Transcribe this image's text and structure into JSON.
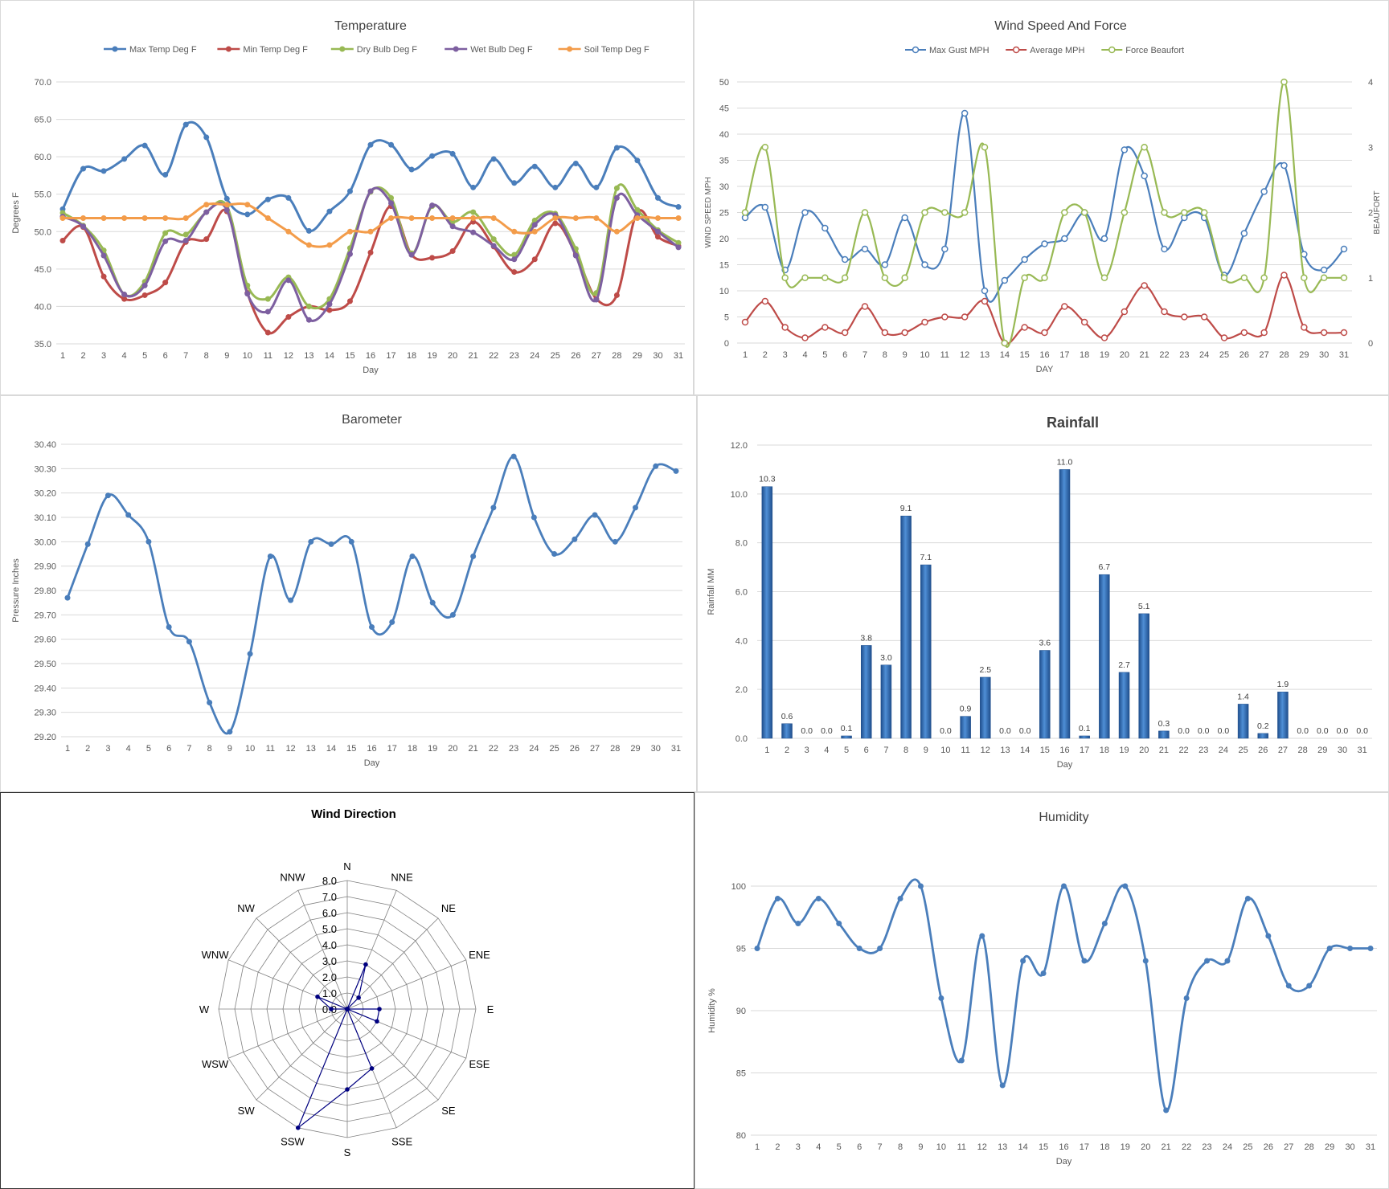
{
  "days": [
    1,
    2,
    3,
    4,
    5,
    6,
    7,
    8,
    9,
    10,
    11,
    12,
    13,
    14,
    15,
    16,
    17,
    18,
    19,
    20,
    21,
    22,
    23,
    24,
    25,
    26,
    27,
    28,
    29,
    30,
    31
  ],
  "chart_data": [
    {
      "id": "temperature",
      "type": "line",
      "title": "Temperature",
      "xlabel": "Day",
      "ylabel": "Degrees F",
      "ylim": [
        35,
        70
      ],
      "yticks": [
        "35.0",
        "40.0",
        "45.0",
        "50.0",
        "55.0",
        "60.0",
        "65.0",
        "70.0"
      ],
      "legend_position": "top",
      "grid": true,
      "series": [
        {
          "name": "Max Temp Deg F",
          "color": "#4a7ebb",
          "values": [
            53.0,
            58.4,
            58.1,
            59.7,
            61.5,
            57.6,
            64.3,
            62.6,
            54.4,
            52.3,
            54.3,
            54.5,
            50.1,
            52.7,
            55.4,
            61.6,
            61.6,
            58.3,
            60.1,
            60.4,
            55.9,
            59.7,
            56.5,
            58.7,
            55.9,
            59.1,
            55.9,
            61.2,
            59.5,
            54.5,
            53.3
          ]
        },
        {
          "name": "Min Temp Deg F",
          "color": "#be4b48",
          "values": [
            48.8,
            50.6,
            44.0,
            41.0,
            41.5,
            43.2,
            48.6,
            49.0,
            52.7,
            41.8,
            36.5,
            38.6,
            40.0,
            39.5,
            40.7,
            47.2,
            53.4,
            46.9,
            46.5,
            47.4,
            51.3,
            48.0,
            44.6,
            46.3,
            51.1,
            47.0,
            41.0,
            41.5,
            52.6,
            49.3,
            48.1
          ]
        },
        {
          "name": "Dry Bulb Deg F",
          "color": "#98b954",
          "values": [
            52.5,
            50.8,
            47.5,
            41.6,
            43.3,
            49.8,
            49.6,
            52.6,
            53.4,
            42.8,
            41.0,
            43.9,
            40.0,
            41.0,
            47.8,
            55.3,
            54.5,
            47.1,
            53.4,
            51.3,
            52.6,
            49.0,
            46.9,
            51.5,
            52.4,
            47.7,
            41.8,
            55.8,
            52.9,
            50.2,
            48.5
          ]
        },
        {
          "name": "Wet Bulb Deg F",
          "color": "#7d5fa0",
          "values": [
            52.0,
            50.7,
            46.8,
            41.6,
            42.8,
            48.7,
            48.8,
            52.6,
            52.9,
            41.7,
            39.3,
            43.5,
            38.2,
            40.3,
            47.0,
            55.4,
            53.8,
            46.9,
            53.5,
            50.7,
            49.9,
            48.1,
            46.3,
            50.9,
            52.2,
            46.8,
            40.9,
            54.5,
            52.2,
            50.0,
            47.9
          ]
        },
        {
          "name": "Soil Temp Deg F",
          "color": "#f39c4a",
          "values": [
            51.8,
            51.8,
            51.8,
            51.8,
            51.8,
            51.8,
            51.8,
            53.6,
            53.6,
            53.6,
            51.8,
            50.0,
            48.2,
            48.2,
            50.0,
            50.0,
            51.8,
            51.8,
            51.8,
            51.8,
            51.8,
            51.8,
            50.0,
            50.0,
            51.8,
            51.8,
            51.8,
            50.0,
            51.8,
            51.8,
            51.8
          ]
        }
      ]
    },
    {
      "id": "wind",
      "type": "line",
      "title": "Wind Speed And Force",
      "xlabel": "DAY",
      "ylabel": "WIND SPEED MPH",
      "y2label": "BEAUFORT",
      "ylim": [
        0,
        50
      ],
      "y2lim": [
        0,
        4
      ],
      "yticks": [
        "0",
        "5",
        "10",
        "15",
        "20",
        "25",
        "30",
        "35",
        "40",
        "45",
        "50"
      ],
      "y2ticks": [
        "0",
        "1",
        "2",
        "3",
        "4"
      ],
      "legend_position": "top",
      "grid": true,
      "series": [
        {
          "name": "Max Gust MPH",
          "color": "#4a7ebb",
          "axis": "left",
          "values": [
            24,
            26,
            14,
            25,
            22,
            16,
            18,
            15,
            24,
            15,
            18,
            44,
            10,
            12,
            16,
            19,
            20,
            25,
            20,
            37,
            32,
            18,
            24,
            24,
            13,
            21,
            29,
            34,
            17,
            14,
            18
          ]
        },
        {
          "name": "Average MPH",
          "color": "#be4b48",
          "axis": "left",
          "values": [
            4,
            8,
            3,
            1,
            3,
            2,
            7,
            2,
            2,
            4,
            5,
            5,
            8,
            0,
            3,
            2,
            7,
            4,
            1,
            6,
            11,
            6,
            5,
            5,
            1,
            2,
            2,
            13,
            3,
            2,
            2
          ]
        },
        {
          "name": "Force Beaufort",
          "color": "#98b954",
          "axis": "right",
          "values": [
            2,
            3,
            1,
            1,
            1,
            1,
            2,
            1,
            1,
            2,
            2,
            2,
            3,
            0,
            1,
            1,
            2,
            2,
            1,
            2,
            3,
            2,
            2,
            2,
            1,
            1,
            1,
            4,
            1,
            1,
            1
          ]
        }
      ]
    },
    {
      "id": "barometer",
      "type": "line",
      "title": "Barometer",
      "xlabel": "Day",
      "ylabel": "Pressure Inches",
      "ylim": [
        29.2,
        30.4
      ],
      "yticks": [
        "29.20",
        "29.30",
        "29.40",
        "29.50",
        "29.60",
        "29.70",
        "29.80",
        "29.90",
        "30.00",
        "30.10",
        "30.20",
        "30.30",
        "30.40"
      ],
      "grid": true,
      "series": [
        {
          "name": "",
          "color": "#4a7ebb",
          "values": [
            29.77,
            29.99,
            30.19,
            30.11,
            30.0,
            29.65,
            29.59,
            29.34,
            29.22,
            29.54,
            29.94,
            29.76,
            30.0,
            29.99,
            30.0,
            29.65,
            29.67,
            29.94,
            29.75,
            29.7,
            29.94,
            30.14,
            30.35,
            30.1,
            29.95,
            30.01,
            30.11,
            30.0,
            30.14,
            30.31,
            30.29
          ]
        }
      ]
    },
    {
      "id": "rainfall",
      "type": "bar",
      "title": "Rainfall",
      "xlabel": "Day",
      "ylabel": "Rainfall MM",
      "ylim": [
        0,
        12
      ],
      "yticks": [
        "0.0",
        "2.0",
        "4.0",
        "6.0",
        "8.0",
        "10.0",
        "12.0"
      ],
      "grid": true,
      "series": [
        {
          "name": "",
          "color": "#2e6db4",
          "values": [
            10.3,
            0.6,
            0.0,
            0.0,
            0.1,
            3.8,
            3.0,
            9.1,
            7.1,
            0.0,
            0.9,
            2.5,
            0.0,
            0.0,
            3.6,
            11.0,
            0.1,
            6.7,
            2.7,
            5.1,
            0.3,
            0.0,
            0.0,
            0.0,
            1.4,
            0.2,
            1.9,
            0.0,
            0.0,
            0.0,
            0.0
          ]
        }
      ],
      "data_labels": [
        "10.3",
        "0.6",
        "0.0",
        "0.0",
        "0.1",
        "3.8",
        "3.0",
        "9.1",
        "7.1",
        "0.0",
        "0.9",
        "2.5",
        "0.0",
        "0.0",
        "3.6",
        "11.0",
        "0.1",
        "6.7",
        "2.7",
        "5.1",
        "0.3",
        "0.0",
        "0.0",
        "0.0",
        "1.4",
        "0.2",
        "1.9",
        "0.0",
        "0.0",
        "0.0",
        "0.0"
      ]
    },
    {
      "id": "wind_direction",
      "type": "radar",
      "title": "Wind Direction",
      "rlim": [
        0,
        8
      ],
      "rticks": [
        "0.0",
        "1.0",
        "2.0",
        "3.0",
        "4.0",
        "5.0",
        "6.0",
        "7.0",
        "8.0"
      ],
      "categories": [
        "N",
        "NNE",
        "NE",
        "ENE",
        "E",
        "ESE",
        "SE",
        "SSE",
        "S",
        "SSW",
        "SW",
        "WSW",
        "W",
        "WNW",
        "NW",
        "NNW"
      ],
      "series": [
        {
          "name": "",
          "color": "#000080",
          "values": [
            0,
            3,
            1,
            0,
            2,
            2,
            0,
            4,
            5,
            8,
            0,
            0,
            1,
            2,
            0,
            0
          ]
        }
      ]
    },
    {
      "id": "humidity",
      "type": "line",
      "title": "Humidity",
      "xlabel": "Day",
      "ylabel": "Humidity %",
      "ylim": [
        80,
        100
      ],
      "yticks": [
        "80",
        "85",
        "90",
        "95",
        "100"
      ],
      "grid": true,
      "series": [
        {
          "name": "",
          "color": "#4a7ebb",
          "values": [
            95,
            99,
            97,
            99,
            97,
            95,
            95,
            99,
            100,
            91,
            86,
            96,
            84,
            94,
            93,
            100,
            94,
            97,
            100,
            94,
            82,
            91,
            94,
            94,
            99,
            96,
            92,
            92,
            95,
            95,
            95
          ]
        }
      ]
    }
  ]
}
